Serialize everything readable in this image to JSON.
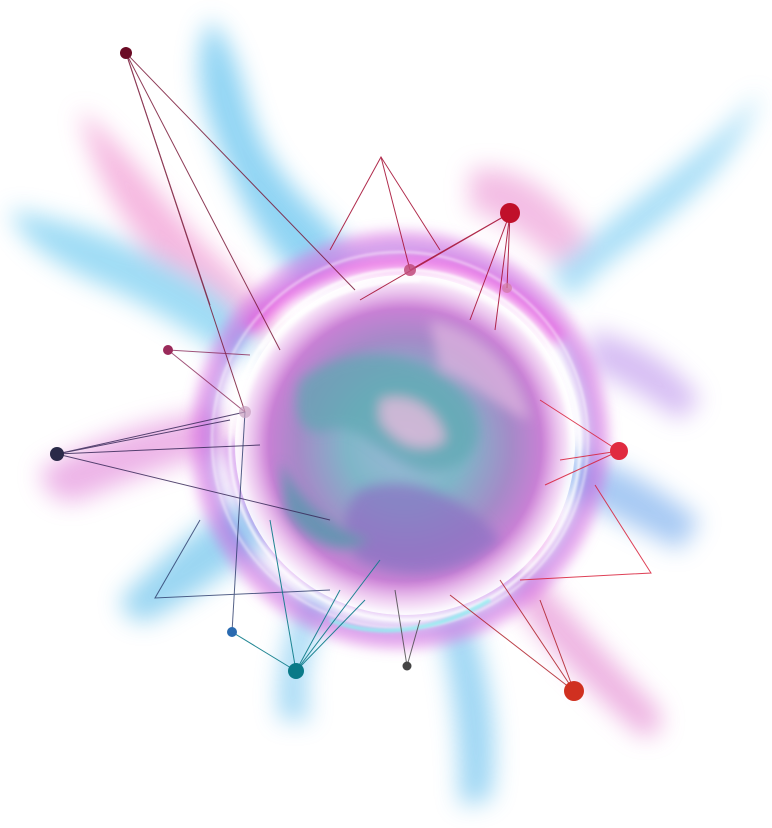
{
  "scene": {
    "subject": "abstract-energy-orb-with-network-lines",
    "colors": {
      "background": "#ffffff",
      "cyan": "#5ec8f0",
      "magenta": "#e060d8",
      "violet": "#9a58e6",
      "teal": "#2f9ea6",
      "pink": "#f2a0d8",
      "crimson": "#c0102a",
      "red": "#e02a40",
      "wine": "#6a0a24",
      "navy": "#2a2a48",
      "blue": "#2a6ab0",
      "dark-teal": "#0a7a88",
      "grey": "#444444"
    }
  }
}
